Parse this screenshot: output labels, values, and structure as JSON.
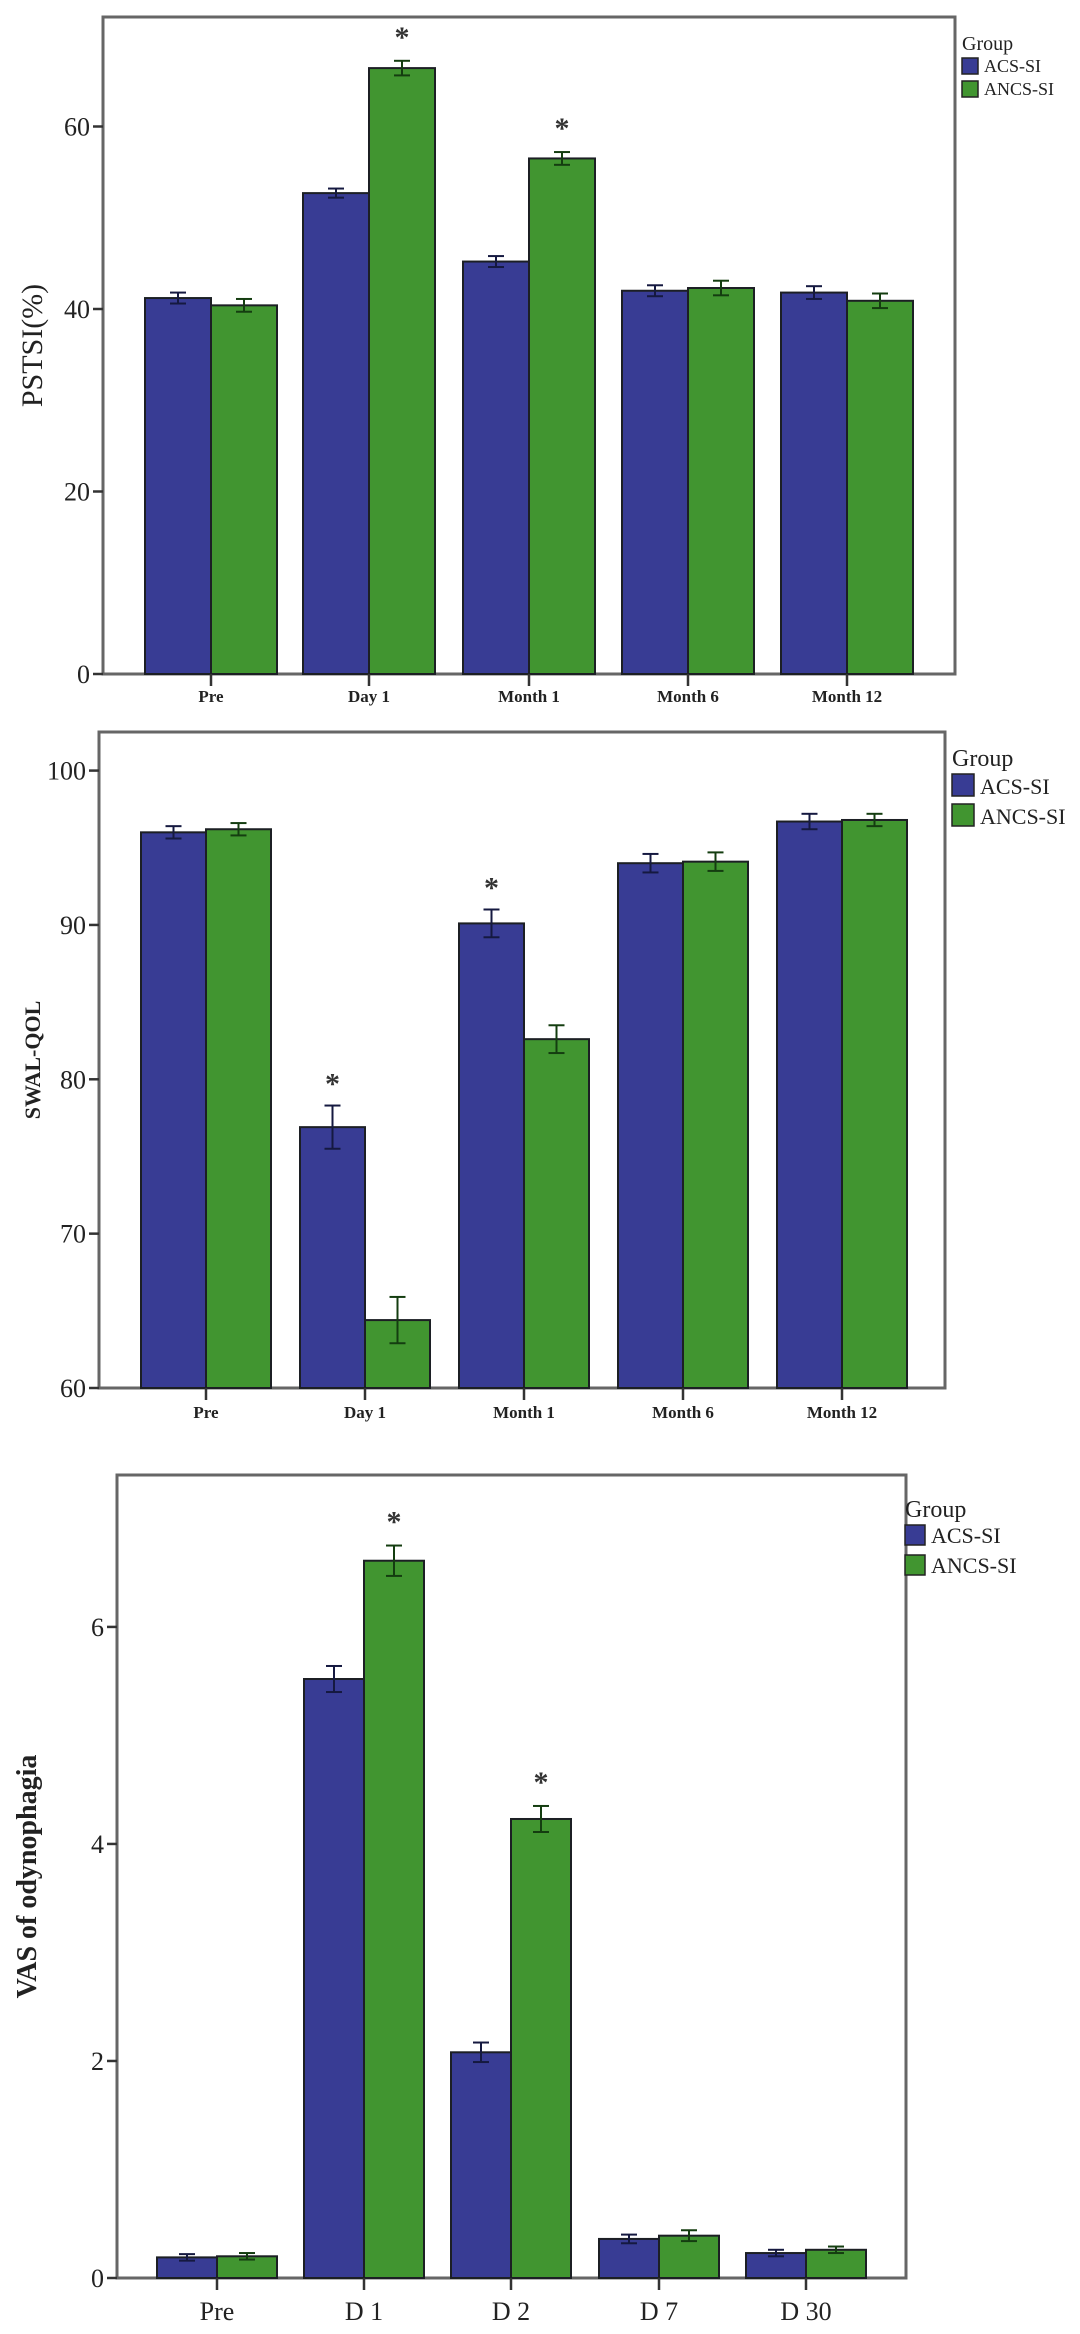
{
  "legend_title": "Group",
  "colors": {
    "ACS-SI": "#383c94",
    "ANCS-SI": "#419530",
    "frame": "#666666",
    "axis": "#333333"
  },
  "chart_data": [
    {
      "type": "bar",
      "title": "",
      "xlabel": "",
      "ylabel": "PSTSI(%)",
      "ylim": [
        0,
        72
      ],
      "yticks": [
        0,
        20,
        40,
        60
      ],
      "grid": false,
      "legend": {
        "title": "Group",
        "placement": "top-right-outside"
      },
      "categories": [
        "Pre",
        "Day 1",
        "Month 1",
        "Month 6",
        "Month 12"
      ],
      "series": [
        {
          "name": "ACS-SI",
          "values": [
            41.2,
            52.7,
            45.2,
            42.0,
            41.8
          ],
          "errors": [
            0.6,
            0.5,
            0.6,
            0.6,
            0.7
          ]
        },
        {
          "name": "ANCS-SI",
          "values": [
            40.4,
            66.4,
            56.5,
            42.3,
            40.9
          ],
          "errors": [
            0.7,
            0.8,
            0.7,
            0.8,
            0.8
          ]
        }
      ],
      "significance": [
        {
          "category": "Day 1",
          "series": "ANCS-SI",
          "mark": "*"
        },
        {
          "category": "Month 1",
          "series": "ANCS-SI",
          "mark": "*"
        }
      ]
    },
    {
      "type": "bar",
      "title": "",
      "xlabel": "",
      "ylabel": "SWAL-QOL",
      "ylim": [
        60,
        102.5
      ],
      "yticks": [
        60,
        70,
        80,
        90,
        100
      ],
      "grid": false,
      "legend": {
        "title": "Group",
        "placement": "top-right-outside"
      },
      "categories": [
        "Pre",
        "Day 1",
        "Month 1",
        "Month 6",
        "Month 12"
      ],
      "series": [
        {
          "name": "ACS-SI",
          "values": [
            96.0,
            76.9,
            90.1,
            94.0,
            96.7
          ],
          "errors": [
            0.4,
            1.4,
            0.9,
            0.6,
            0.5
          ]
        },
        {
          "name": "ANCS-SI",
          "values": [
            96.2,
            64.4,
            82.6,
            94.1,
            96.8
          ],
          "errors": [
            0.4,
            1.5,
            0.9,
            0.6,
            0.4
          ]
        }
      ],
      "significance": [
        {
          "category": "Day 1",
          "series": "ACS-SI",
          "mark": "*"
        },
        {
          "category": "Month 1",
          "series": "ACS-SI",
          "mark": "*"
        }
      ]
    },
    {
      "type": "bar",
      "title": "",
      "xlabel": "",
      "ylabel": "VAS of odynophagia",
      "ylim": [
        0,
        7.4
      ],
      "yticks": [
        0,
        2,
        4,
        6
      ],
      "grid": false,
      "legend": {
        "title": "Group",
        "placement": "top-right-outside"
      },
      "categories": [
        "Pre",
        "D 1",
        "D 2",
        "D 7",
        "D 30"
      ],
      "series": [
        {
          "name": "ACS-SI",
          "values": [
            0.19,
            5.52,
            2.08,
            0.36,
            0.23
          ],
          "errors": [
            0.03,
            0.12,
            0.09,
            0.04,
            0.03
          ]
        },
        {
          "name": "ANCS-SI",
          "values": [
            0.2,
            6.61,
            4.23,
            0.39,
            0.26
          ],
          "errors": [
            0.03,
            0.14,
            0.12,
            0.05,
            0.03
          ]
        }
      ],
      "significance": [
        {
          "category": "D 1",
          "series": "ANCS-SI",
          "mark": "*"
        },
        {
          "category": "D 2",
          "series": "ANCS-SI",
          "mark": "*"
        }
      ]
    }
  ]
}
